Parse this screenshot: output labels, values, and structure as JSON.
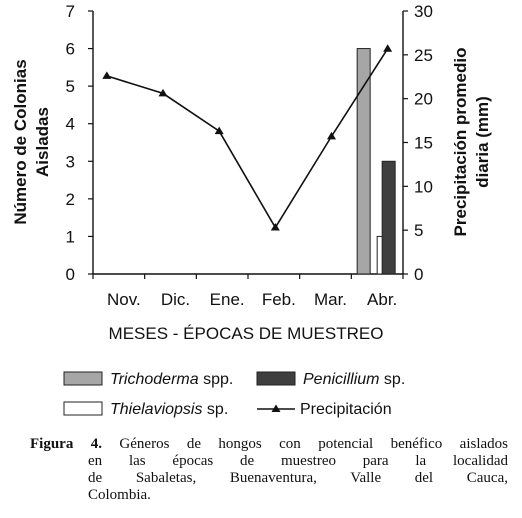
{
  "chart_data": {
    "type": "bar+line",
    "categories": [
      "Nov.",
      "Dic.",
      "Ene.",
      "Feb.",
      "Mar.",
      "Abr."
    ],
    "xlabel": "MESES - ÉPOCAS DE MUESTREO",
    "ylabel_left": [
      "Número de Colonias",
      "Aisladas"
    ],
    "ylabel_right": [
      "Precipitación promedio",
      "diaria (mm)"
    ],
    "ylim_left": [
      0,
      7
    ],
    "ylim_right": [
      0,
      30
    ],
    "yticks_left": [
      "0",
      "1",
      "2",
      "3",
      "4",
      "5",
      "6",
      "7"
    ],
    "yticks_right": [
      "0",
      "5",
      "10",
      "15",
      "20",
      "25",
      "30"
    ],
    "grid": false,
    "legend_position": "bottom",
    "bar_series": [
      {
        "name": "Trichoderma",
        "suffix": " spp.",
        "color": "#a6a6a6",
        "values": [
          0,
          0,
          0,
          0,
          0,
          6
        ]
      },
      {
        "name": "Thielaviopsis",
        "suffix": " sp.",
        "color": "#ffffff",
        "values": [
          0,
          0,
          0,
          0,
          0,
          1
        ]
      },
      {
        "name": "Penicillium",
        "suffix": " sp.",
        "color": "#3f3f3f",
        "values": [
          0,
          0,
          0,
          0,
          0,
          3
        ]
      }
    ],
    "line_series": {
      "name": "Precipitación",
      "axis": "right",
      "values": [
        22.6,
        20.6,
        16.3,
        5.3,
        15.7,
        25.7
      ]
    }
  },
  "caption": {
    "label": "Figura 4.",
    "lines": [
      "Géneros de hongos con potencial benéfico aislados",
      "en las épocas de muestreo para la localidad",
      "de Sabaletas, Buenaventura, Valle del Cauca,",
      "Colombia."
    ]
  }
}
